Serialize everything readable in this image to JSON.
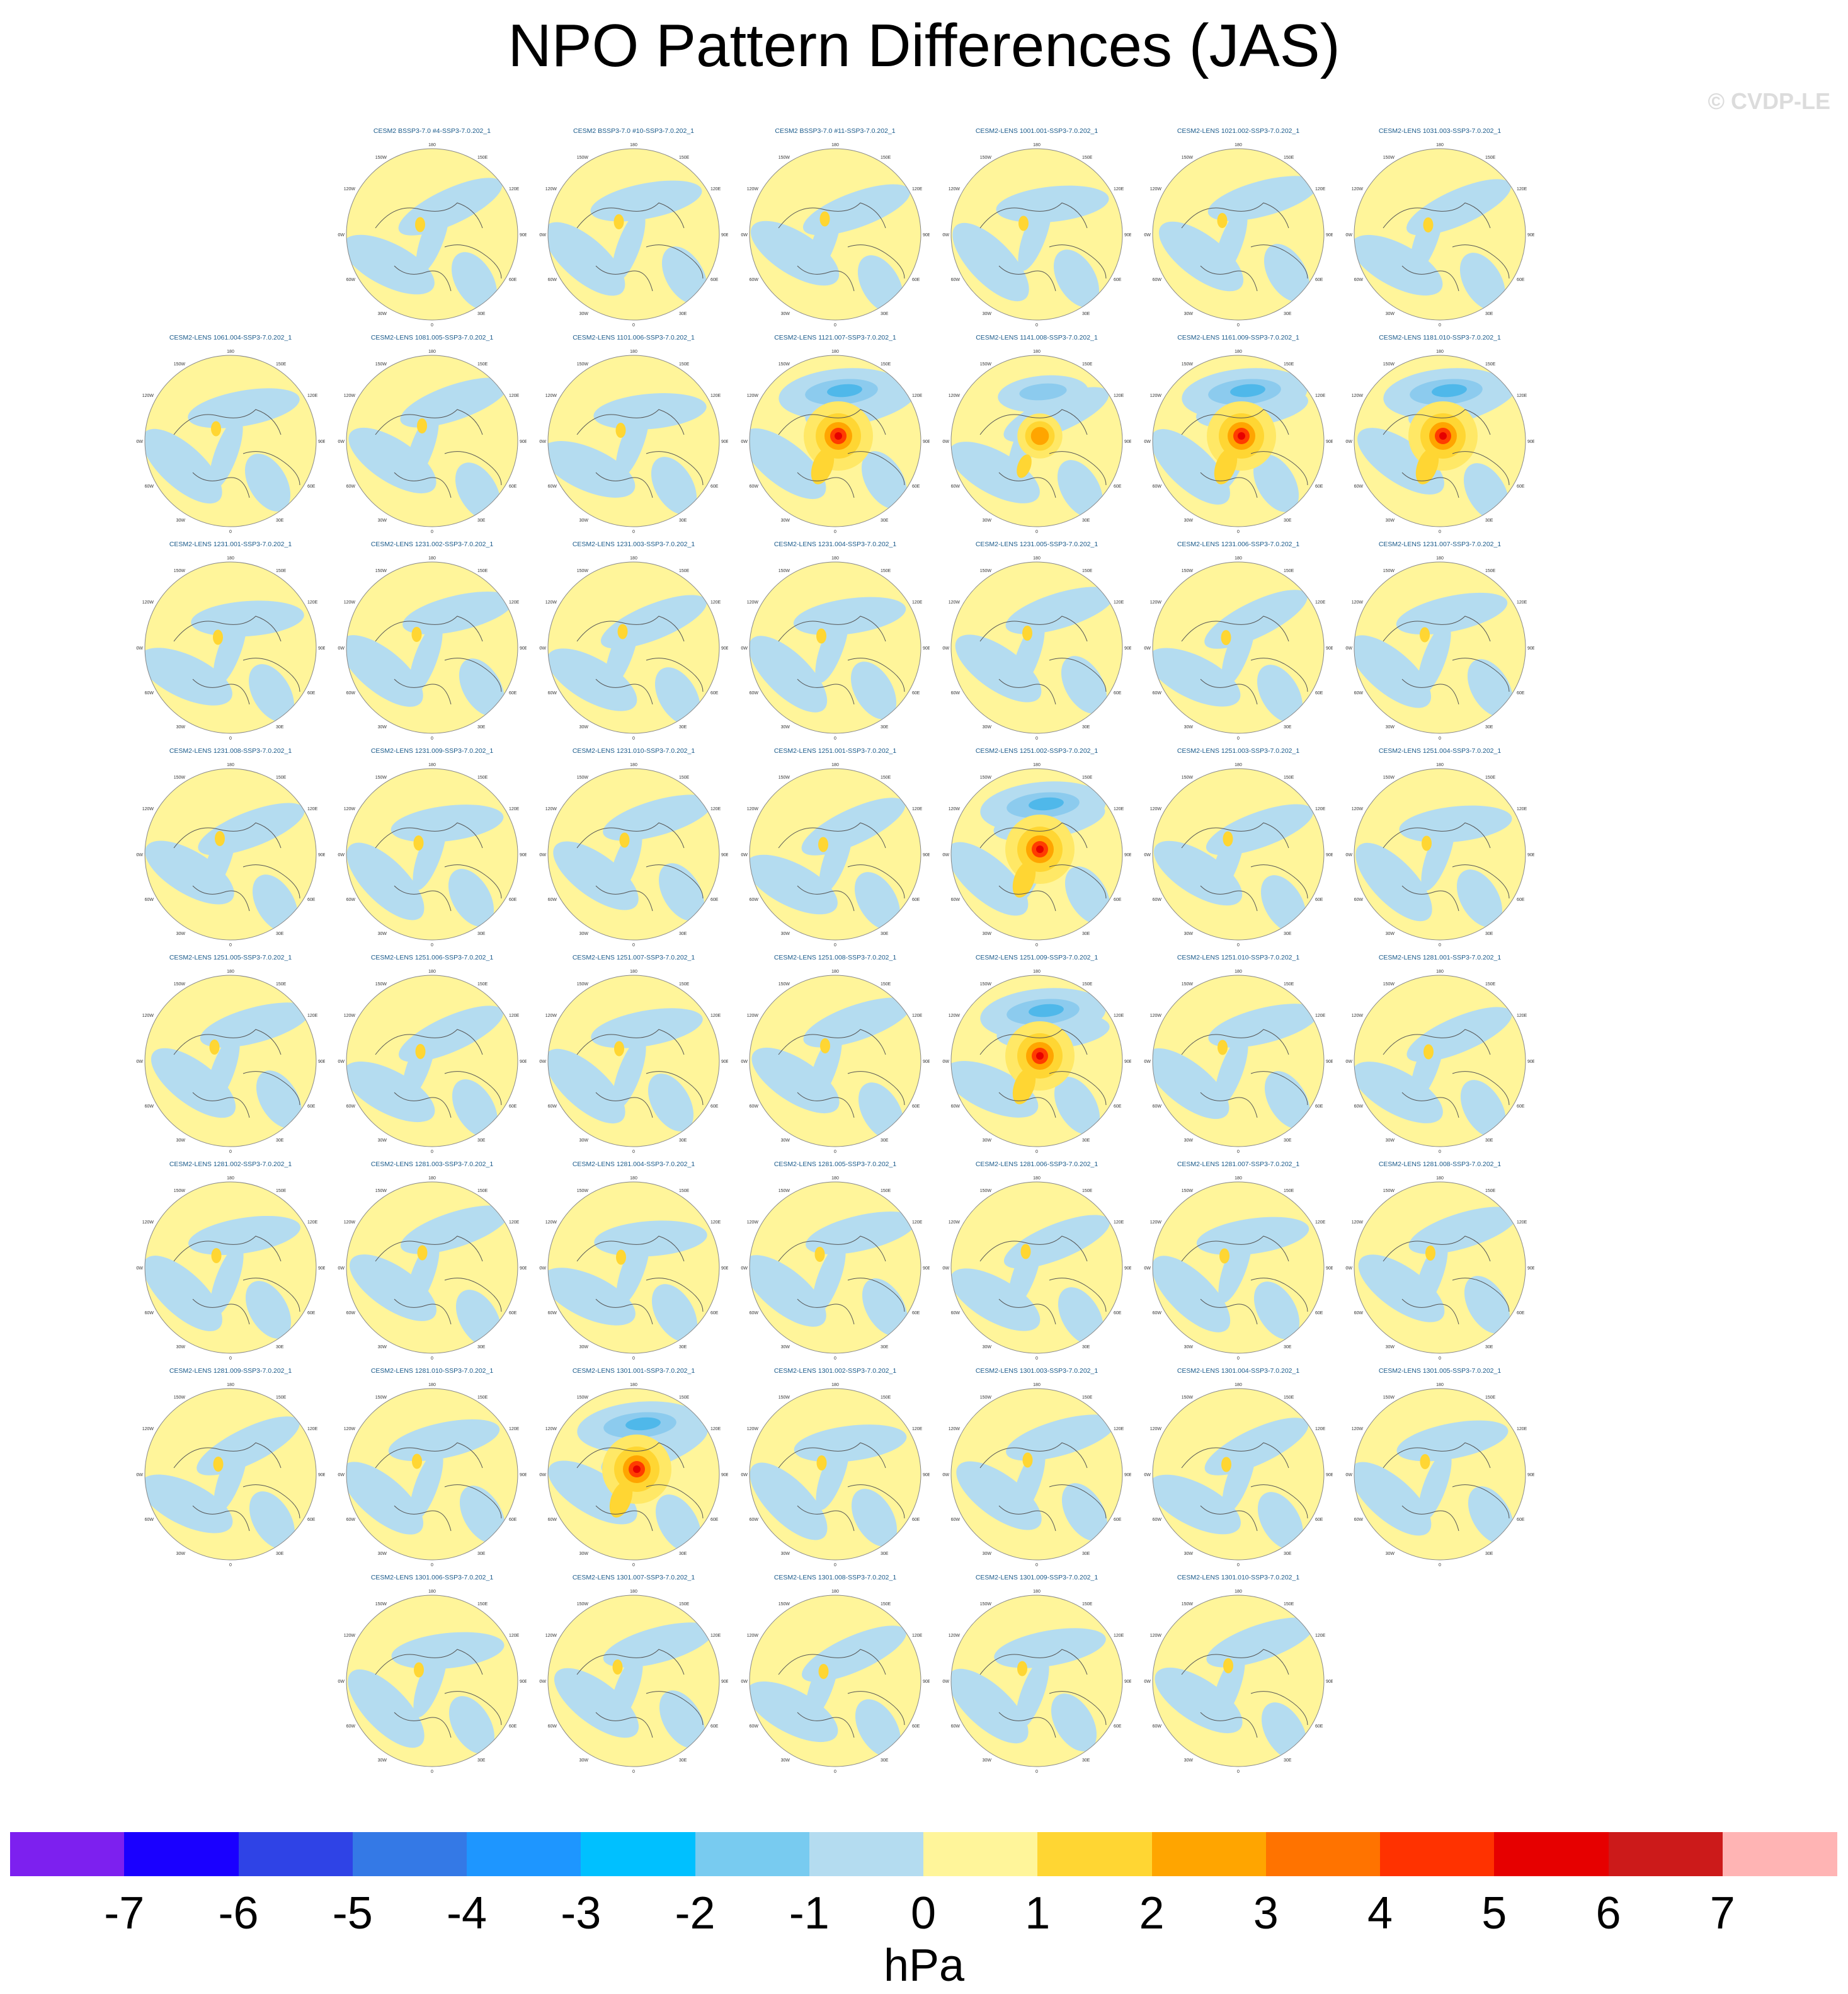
{
  "title": "NPO Pattern Differences (JAS)",
  "watermark": "© CVDP-LE",
  "units": "hPa",
  "colors": {
    "blue_light": "#b4dcf0",
    "blue_mid": "#8ccbee",
    "blue_strong": "#4fb8ea",
    "yellow_light": "#fff59a",
    "orange_light": "#ffd633",
    "orange_mid": "#ffa500",
    "red_mid": "#ff3c00",
    "red_strong": "#e60000",
    "coast": "#555555",
    "panel_title": "#1a5a8a"
  },
  "panel_axis_labels": {
    "top": "180",
    "bottom": "0",
    "left_mid": "90W",
    "right_mid": "90E",
    "upper_left": "120W",
    "upper_left2": "150W",
    "upper_right": "150E",
    "upper_right2": "120E",
    "lower_left": "60W",
    "lower_left2": "30W",
    "lower_right": "60E",
    "lower_right2": "30E"
  },
  "chart_data": {
    "type": "heatmap",
    "description_type": "polar-stereographic map panels of sea level pressure difference",
    "colorbar": {
      "colors": [
        "#7d20ef",
        "#1a00ff",
        "#2f43e6",
        "#3479e6",
        "#1e96ff",
        "#00c0ff",
        "#78cbf0",
        "#b4dcf0",
        "#fff59a",
        "#ffd633",
        "#ffa500",
        "#ff7300",
        "#ff3200",
        "#e60000",
        "#cc1a1a",
        "#ffb4b4"
      ],
      "ticks": [
        -7,
        -6,
        -5,
        -4,
        -3,
        -2,
        -1,
        0,
        1,
        2,
        3,
        4,
        5,
        6,
        7
      ],
      "units": "hPa"
    },
    "rows": [
      [
        {
          "name": "",
          "pattern": "none"
        },
        {
          "name": "CESM2 BSSP3-7.0 #4-SSP3-7.0.202_1",
          "pattern": "weak"
        },
        {
          "name": "CESM2 BSSP3-7.0 #10-SSP3-7.0.202_1",
          "pattern": "weak"
        },
        {
          "name": "CESM2 BSSP3-7.0 #11-SSP3-7.0.202_1",
          "pattern": "weak"
        },
        {
          "name": "CESM2-LENS 1001.001-SSP3-7.0.202_1",
          "pattern": "weak"
        },
        {
          "name": "CESM2-LENS 1021.002-SSP3-7.0.202_1",
          "pattern": "weak"
        },
        {
          "name": "CESM2-LENS 1031.003-SSP3-7.0.202_1",
          "pattern": "weak"
        }
      ],
      [
        {
          "name": "CESM2-LENS 1061.004-SSP3-7.0.202_1",
          "pattern": "weak"
        },
        {
          "name": "CESM2-LENS 1081.005-SSP3-7.0.202_1",
          "pattern": "weak"
        },
        {
          "name": "CESM2-LENS 1101.006-SSP3-7.0.202_1",
          "pattern": "weak"
        },
        {
          "name": "CESM2-LENS 1121.007-SSP3-7.0.202_1",
          "pattern": "strong"
        },
        {
          "name": "CESM2-LENS 1141.008-SSP3-7.0.202_1",
          "pattern": "moderate"
        },
        {
          "name": "CESM2-LENS 1161.009-SSP3-7.0.202_1",
          "pattern": "strong"
        },
        {
          "name": "CESM2-LENS 1181.010-SSP3-7.0.202_1",
          "pattern": "strong"
        }
      ],
      [
        {
          "name": "CESM2-LENS 1231.001-SSP3-7.0.202_1",
          "pattern": "weak"
        },
        {
          "name": "CESM2-LENS 1231.002-SSP3-7.0.202_1",
          "pattern": "weak"
        },
        {
          "name": "CESM2-LENS 1231.003-SSP3-7.0.202_1",
          "pattern": "weak"
        },
        {
          "name": "CESM2-LENS 1231.004-SSP3-7.0.202_1",
          "pattern": "weak"
        },
        {
          "name": "CESM2-LENS 1231.005-SSP3-7.0.202_1",
          "pattern": "weak"
        },
        {
          "name": "CESM2-LENS 1231.006-SSP3-7.0.202_1",
          "pattern": "weak"
        },
        {
          "name": "CESM2-LENS 1231.007-SSP3-7.0.202_1",
          "pattern": "weak"
        }
      ],
      [
        {
          "name": "CESM2-LENS 1231.008-SSP3-7.0.202_1",
          "pattern": "weak"
        },
        {
          "name": "CESM2-LENS 1231.009-SSP3-7.0.202_1",
          "pattern": "weak"
        },
        {
          "name": "CESM2-LENS 1231.010-SSP3-7.0.202_1",
          "pattern": "weak"
        },
        {
          "name": "CESM2-LENS 1251.001-SSP3-7.0.202_1",
          "pattern": "weak"
        },
        {
          "name": "CESM2-LENS 1251.002-SSP3-7.0.202_1",
          "pattern": "strong"
        },
        {
          "name": "CESM2-LENS 1251.003-SSP3-7.0.202_1",
          "pattern": "weak"
        },
        {
          "name": "CESM2-LENS 1251.004-SSP3-7.0.202_1",
          "pattern": "weak"
        }
      ],
      [
        {
          "name": "CESM2-LENS 1251.005-SSP3-7.0.202_1",
          "pattern": "weak"
        },
        {
          "name": "CESM2-LENS 1251.006-SSP3-7.0.202_1",
          "pattern": "weak"
        },
        {
          "name": "CESM2-LENS 1251.007-SSP3-7.0.202_1",
          "pattern": "weak"
        },
        {
          "name": "CESM2-LENS 1251.008-SSP3-7.0.202_1",
          "pattern": "weak"
        },
        {
          "name": "CESM2-LENS 1251.009-SSP3-7.0.202_1",
          "pattern": "strong"
        },
        {
          "name": "CESM2-LENS 1251.010-SSP3-7.0.202_1",
          "pattern": "weak"
        },
        {
          "name": "CESM2-LENS 1281.001-SSP3-7.0.202_1",
          "pattern": "weak"
        }
      ],
      [
        {
          "name": "CESM2-LENS 1281.002-SSP3-7.0.202_1",
          "pattern": "weak"
        },
        {
          "name": "CESM2-LENS 1281.003-SSP3-7.0.202_1",
          "pattern": "weak"
        },
        {
          "name": "CESM2-LENS 1281.004-SSP3-7.0.202_1",
          "pattern": "weak"
        },
        {
          "name": "CESM2-LENS 1281.005-SSP3-7.0.202_1",
          "pattern": "weak"
        },
        {
          "name": "CESM2-LENS 1281.006-SSP3-7.0.202_1",
          "pattern": "weak"
        },
        {
          "name": "CESM2-LENS 1281.007-SSP3-7.0.202_1",
          "pattern": "weak"
        },
        {
          "name": "CESM2-LENS 1281.008-SSP3-7.0.202_1",
          "pattern": "weak"
        }
      ],
      [
        {
          "name": "CESM2-LENS 1281.009-SSP3-7.0.202_1",
          "pattern": "weak"
        },
        {
          "name": "CESM2-LENS 1281.010-SSP3-7.0.202_1",
          "pattern": "weak"
        },
        {
          "name": "CESM2-LENS 1301.001-SSP3-7.0.202_1",
          "pattern": "strong"
        },
        {
          "name": "CESM2-LENS 1301.002-SSP3-7.0.202_1",
          "pattern": "weak"
        },
        {
          "name": "CESM2-LENS 1301.003-SSP3-7.0.202_1",
          "pattern": "weak"
        },
        {
          "name": "CESM2-LENS 1301.004-SSP3-7.0.202_1",
          "pattern": "weak"
        },
        {
          "name": "CESM2-LENS 1301.005-SSP3-7.0.202_1",
          "pattern": "weak"
        }
      ],
      [
        {
          "name": "",
          "pattern": "none"
        },
        {
          "name": "CESM2-LENS 1301.006-SSP3-7.0.202_1",
          "pattern": "weak"
        },
        {
          "name": "CESM2-LENS 1301.007-SSP3-7.0.202_1",
          "pattern": "weak"
        },
        {
          "name": "CESM2-LENS 1301.008-SSP3-7.0.202_1",
          "pattern": "weak"
        },
        {
          "name": "CESM2-LENS 1301.009-SSP3-7.0.202_1",
          "pattern": "weak"
        },
        {
          "name": "CESM2-LENS 1301.010-SSP3-7.0.202_1",
          "pattern": "weak"
        }
      ]
    ]
  }
}
